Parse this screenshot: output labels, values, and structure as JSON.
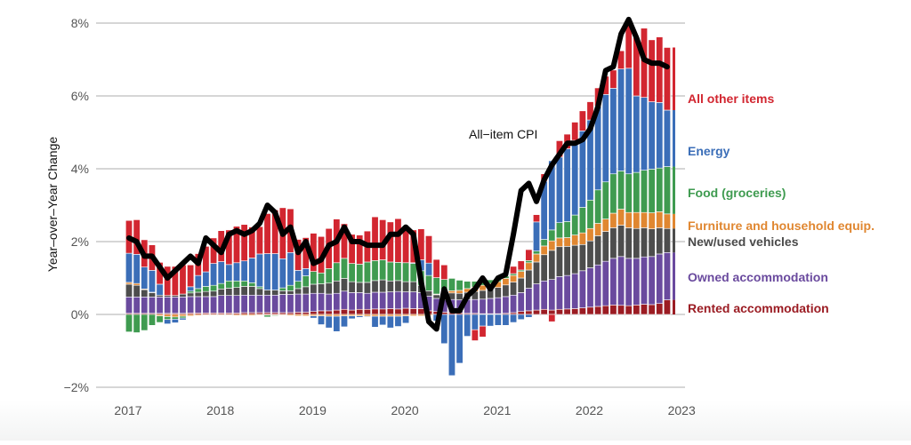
{
  "chart_data": {
    "type": "bar",
    "stacked": true,
    "title": "",
    "xlabel": "",
    "ylabel": "Year–over–Year Change",
    "ylim": [
      -2,
      8
    ],
    "yticks": [
      {
        "value": 8,
        "label": "8%"
      },
      {
        "value": 6,
        "label": "6%"
      },
      {
        "value": 4,
        "label": "4%"
      },
      {
        "value": 2,
        "label": "2%"
      },
      {
        "value": 0,
        "label": "0%"
      },
      {
        "value": -2,
        "label": "−2%"
      }
    ],
    "xticks": [
      "2017",
      "2018",
      "2019",
      "2020",
      "2021",
      "2022",
      "2023"
    ],
    "x_start": "2017-01",
    "x_frequency": "monthly",
    "grid": true,
    "legend_placement": "right",
    "annotation": "All−item CPI",
    "series": [
      {
        "name": "Rented accommodation",
        "color": "#9b1c23",
        "values": [
          0.03,
          0.03,
          0.03,
          0.03,
          0.03,
          0.03,
          0.03,
          0.03,
          0.04,
          0.04,
          0.04,
          0.04,
          0.04,
          0.04,
          0.04,
          0.05,
          0.05,
          0.05,
          0.05,
          0.05,
          0.05,
          0.05,
          0.06,
          0.06,
          0.08,
          0.1,
          0.1,
          0.12,
          0.14,
          0.12,
          0.14,
          0.14,
          0.15,
          0.15,
          0.16,
          0.15,
          0.17,
          0.16,
          0.16,
          0.1,
          0.08,
          0.06,
          0.05,
          0.04,
          0.03,
          0.03,
          0.02,
          0.02,
          0.02,
          0.03,
          0.05,
          0.08,
          0.1,
          0.12,
          0.14,
          0.12,
          0.14,
          0.15,
          0.16,
          0.18,
          0.2,
          0.22,
          0.24,
          0.26,
          0.25,
          0.24,
          0.26,
          0.28,
          0.27,
          0.3,
          0.4
        ]
      },
      {
        "name": "Owned accommodation",
        "color": "#6a4a9e",
        "values": [
          0.45,
          0.45,
          0.45,
          0.45,
          0.45,
          0.45,
          0.45,
          0.45,
          0.45,
          0.45,
          0.45,
          0.45,
          0.48,
          0.48,
          0.48,
          0.48,
          0.48,
          0.48,
          0.48,
          0.48,
          0.5,
          0.5,
          0.5,
          0.5,
          0.5,
          0.48,
          0.46,
          0.46,
          0.5,
          0.48,
          0.46,
          0.44,
          0.46,
          0.46,
          0.46,
          0.48,
          0.45,
          0.46,
          0.44,
          0.4,
          0.36,
          0.34,
          0.36,
          0.36,
          0.38,
          0.38,
          0.4,
          0.42,
          0.44,
          0.46,
          0.48,
          0.52,
          0.62,
          0.72,
          0.78,
          0.84,
          0.9,
          0.92,
          0.96,
          1.02,
          1.08,
          1.14,
          1.22,
          1.28,
          1.34,
          1.3,
          1.28,
          1.3,
          1.32,
          1.36,
          1.3
        ]
      },
      {
        "name": "New/used vehicles",
        "color": "#4d4d4d",
        "values": [
          0.35,
          0.32,
          0.2,
          0.12,
          0.05,
          0.04,
          0.04,
          0.08,
          0.1,
          0.12,
          0.14,
          0.15,
          0.18,
          0.2,
          0.22,
          0.24,
          0.24,
          0.18,
          0.14,
          0.14,
          0.1,
          0.1,
          0.15,
          0.2,
          0.25,
          0.26,
          0.3,
          0.34,
          0.35,
          0.3,
          0.28,
          0.3,
          0.32,
          0.34,
          0.3,
          0.3,
          0.28,
          0.28,
          0.2,
          0.15,
          0.1,
          0.12,
          0.18,
          0.18,
          0.2,
          0.22,
          0.24,
          0.26,
          0.28,
          0.32,
          0.36,
          0.4,
          0.5,
          0.6,
          0.72,
          0.8,
          0.82,
          0.8,
          0.78,
          0.72,
          0.74,
          0.8,
          0.82,
          0.84,
          0.86,
          0.84,
          0.82,
          0.8,
          0.76,
          0.72,
          0.66
        ]
      },
      {
        "name": "Furniture and household equip.",
        "color": "#e08731",
        "values": [
          0.05,
          0.05,
          0.02,
          0.01,
          -0.04,
          -0.06,
          -0.07,
          -0.05,
          -0.04,
          -0.03,
          -0.02,
          -0.02,
          -0.02,
          -0.02,
          -0.03,
          -0.03,
          -0.03,
          -0.02,
          -0.02,
          -0.02,
          -0.02,
          -0.03,
          -0.04,
          -0.04,
          -0.04,
          -0.04,
          -0.05,
          -0.05,
          -0.04,
          -0.04,
          -0.04,
          -0.05,
          -0.05,
          -0.05,
          -0.05,
          -0.05,
          -0.04,
          -0.04,
          -0.04,
          -0.03,
          0.02,
          0.04,
          0.06,
          0.08,
          0.1,
          0.12,
          0.14,
          0.15,
          0.16,
          0.18,
          0.18,
          0.18,
          0.2,
          0.22,
          0.24,
          0.26,
          0.24,
          0.24,
          0.28,
          0.32,
          0.34,
          0.34,
          0.34,
          0.4,
          0.44,
          0.42,
          0.44,
          0.42,
          0.44,
          0.44,
          0.4
        ]
      },
      {
        "name": "Food (groceries)",
        "color": "#3f9b50",
        "values": [
          -0.48,
          -0.5,
          -0.44,
          -0.3,
          -0.18,
          -0.08,
          -0.06,
          -0.05,
          0.05,
          0.1,
          0.14,
          0.16,
          0.15,
          0.2,
          0.18,
          0.15,
          0.1,
          0.05,
          -0.05,
          -0.02,
          0.08,
          0.15,
          0.2,
          0.3,
          0.35,
          0.3,
          0.4,
          0.5,
          0.55,
          0.5,
          0.5,
          0.56,
          0.55,
          0.55,
          0.52,
          0.5,
          0.52,
          0.5,
          0.4,
          0.42,
          0.45,
          0.4,
          0.34,
          0.28,
          0.2,
          0.16,
          0.12,
          0.1,
          0.08,
          0.06,
          0.05,
          0.04,
          0.06,
          0.08,
          0.18,
          0.3,
          0.42,
          0.44,
          0.55,
          0.7,
          0.78,
          0.92,
          1.02,
          1.08,
          1.05,
          1.06,
          1.1,
          1.16,
          1.2,
          1.2,
          1.3
        ]
      },
      {
        "name": "Energy",
        "color": "#3b6eb8",
        "values": [
          0.8,
          0.8,
          0.6,
          0.6,
          0.3,
          -0.12,
          -0.1,
          -0.05,
          0.12,
          0.36,
          0.4,
          0.6,
          0.6,
          0.45,
          0.5,
          0.55,
          0.68,
          0.9,
          1.0,
          1.0,
          0.8,
          0.9,
          0.3,
          0.2,
          -0.06,
          -0.24,
          -0.32,
          -0.42,
          -0.3,
          -0.08,
          -0.04,
          -0.02,
          -0.3,
          -0.24,
          -0.32,
          -0.28,
          -0.2,
          0.02,
          0.3,
          0.34,
          -0.18,
          -0.8,
          -1.68,
          -1.34,
          -0.6,
          -0.42,
          -0.32,
          -0.32,
          -0.3,
          -0.3,
          -0.22,
          -0.14,
          -0.08,
          0.8,
          1.6,
          1.9,
          1.8,
          2.0,
          2.05,
          2.1,
          2.2,
          2.3,
          2.4,
          2.35,
          2.8,
          2.9,
          2.1,
          2.0,
          1.85,
          1.8,
          1.55
        ]
      },
      {
        "name": "All other items",
        "color": "#d22630",
        "values": [
          0.9,
          0.95,
          0.75,
          0.7,
          0.6,
          0.8,
          0.8,
          0.8,
          0.6,
          0.6,
          0.7,
          0.7,
          0.85,
          0.95,
          1.0,
          1.0,
          0.85,
          0.75,
          1.1,
          1.2,
          1.4,
          1.2,
          0.85,
          0.85,
          1.05,
          1.0,
          1.1,
          1.2,
          0.95,
          0.8,
          0.8,
          0.85,
          1.2,
          1.1,
          1.1,
          1.2,
          1.0,
          0.9,
          0.85,
          0.75,
          0.5,
          0.4,
          0.0,
          0.0,
          0.0,
          -0.3,
          -0.3,
          0.0,
          0.0,
          0.0,
          0.2,
          0.25,
          0.3,
          0.2,
          0.2,
          -0.2,
          0.45,
          0.4,
          0.5,
          0.55,
          0.5,
          0.5,
          0.5,
          0.5,
          0.5,
          1.3,
          1.6,
          1.9,
          1.7,
          1.8,
          1.72
        ]
      },
      {
        "name": "All-item CPI",
        "color": "#000000",
        "kind": "line",
        "values": [
          2.1,
          2.0,
          1.6,
          1.6,
          1.3,
          1.0,
          1.2,
          1.4,
          1.6,
          1.4,
          2.1,
          1.9,
          1.7,
          2.2,
          2.3,
          2.2,
          2.3,
          2.5,
          3.0,
          2.8,
          2.2,
          2.4,
          1.7,
          2.0,
          1.4,
          1.5,
          1.9,
          2.0,
          2.4,
          2.0,
          2.0,
          1.9,
          1.9,
          1.9,
          2.2,
          2.2,
          2.4,
          2.2,
          0.9,
          -0.2,
          -0.4,
          0.7,
          0.1,
          0.1,
          0.5,
          0.7,
          1.0,
          0.7,
          1.0,
          1.1,
          2.2,
          3.4,
          3.6,
          3.1,
          3.7,
          4.1,
          4.4,
          4.7,
          4.7,
          4.8,
          5.1,
          5.7,
          6.7,
          6.8,
          7.7,
          8.1,
          7.6,
          7.0,
          6.9,
          6.9,
          6.8
        ]
      }
    ]
  },
  "legend": [
    {
      "label": "All other items",
      "color": "#d22630"
    },
    {
      "label": "Energy",
      "color": "#3b6eb8"
    },
    {
      "label": "Food (groceries)",
      "color": "#3f9b50"
    },
    {
      "label": "Furniture and household equip.",
      "color": "#e08731"
    },
    {
      "label": "New/used vehicles",
      "color": "#4d4d4d"
    },
    {
      "label": "Owned accommodation",
      "color": "#6a4a9e"
    },
    {
      "label": "Rented accommodation",
      "color": "#9b1c23"
    }
  ]
}
